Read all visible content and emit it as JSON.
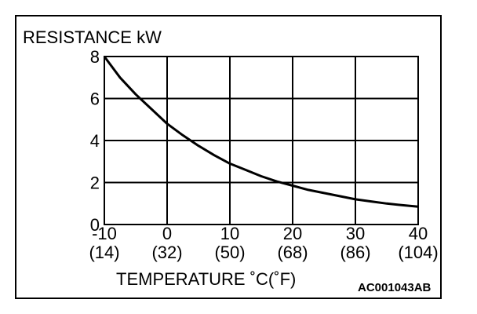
{
  "chart_data": {
    "type": "line",
    "ylabel": "RESISTANCE kW",
    "xlabel": "TEMPERATURE ˚C(˚F)",
    "figure_code": "AC001043AB",
    "xlim": [
      -10,
      40
    ],
    "ylim": [
      0,
      8
    ],
    "x_ticks": [
      {
        "c": "-10",
        "f": "(14)"
      },
      {
        "c": "0",
        "f": "(32)"
      },
      {
        "c": "10",
        "f": "(50)"
      },
      {
        "c": "20",
        "f": "(68)"
      },
      {
        "c": "30",
        "f": "(86)"
      },
      {
        "c": "40",
        "f": "(104)"
      }
    ],
    "x_tick_values": [
      -10,
      0,
      10,
      20,
      30,
      40
    ],
    "y_ticks": [
      "0",
      "2",
      "4",
      "6",
      "8"
    ],
    "y_tick_values": [
      0,
      2,
      4,
      6,
      8
    ],
    "grid": true,
    "series": [
      {
        "x": [
          -10,
          -7.5,
          -5,
          -2.5,
          0,
          2.5,
          5,
          7.5,
          10,
          12.5,
          15,
          17.5,
          20,
          22.5,
          25,
          27.5,
          30,
          32.5,
          35,
          37.5,
          40
        ],
        "values": [
          8.0,
          7.0,
          6.2,
          5.5,
          4.8,
          4.25,
          3.75,
          3.3,
          2.9,
          2.6,
          2.3,
          2.05,
          1.85,
          1.65,
          1.5,
          1.35,
          1.2,
          1.1,
          1.0,
          0.92,
          0.85
        ]
      }
    ]
  }
}
